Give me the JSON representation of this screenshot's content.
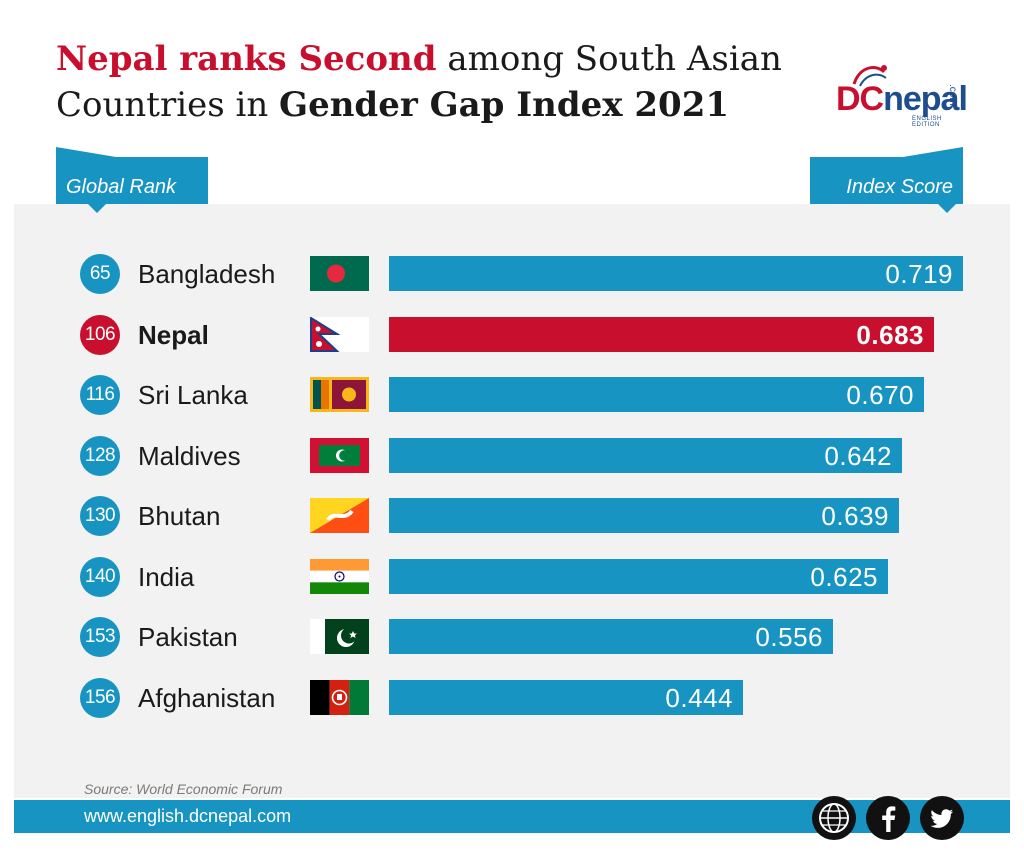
{
  "title": {
    "part1": "Nepal ranks Second",
    "part2": " among South Asian",
    "part3": "Countries in ",
    "part4": "Gender Gap Index 2021"
  },
  "logo": {
    "dc": "DC",
    "nepal": "nepal",
    "com": ".com",
    "edition": "ENGLISH EDITION"
  },
  "headers": {
    "left": "Global Rank",
    "right": "Index Score"
  },
  "chart_data": {
    "type": "bar",
    "orientation": "horizontal",
    "title": "Nepal ranks Second among South Asian Countries in Gender Gap Index 2021",
    "categories": [
      "Bangladesh",
      "Nepal",
      "Sri Lanka",
      "Maldives",
      "Bhutan",
      "India",
      "Pakistan",
      "Afghanistan"
    ],
    "ranks": [
      "65",
      "106",
      "116",
      "128",
      "130",
      "140",
      "153",
      "156"
    ],
    "values": [
      0.719,
      0.683,
      0.67,
      0.642,
      0.639,
      0.625,
      0.556,
      0.444
    ],
    "labels": [
      "0.719",
      "0.683",
      "0.670",
      "0.642",
      "0.639",
      "0.625",
      "0.556",
      "0.444"
    ],
    "highlight": "Nepal",
    "colors": {
      "default": "#1794c1",
      "highlight": "#c8102e"
    },
    "xlabel": "Index Score",
    "ylabel": "Global Rank",
    "xlim": [
      0,
      0.719
    ]
  },
  "flags": [
    "bangladesh-flag",
    "nepal-flag",
    "sri-lanka-flag",
    "maldives-flag",
    "bhutan-flag",
    "india-flag",
    "pakistan-flag",
    "afghanistan-flag"
  ],
  "footer": {
    "source": "Source: World Economic Forum",
    "website": "www.english.dcnepal.com",
    "icons": [
      "globe-icon",
      "facebook-icon",
      "twitter-icon"
    ]
  }
}
